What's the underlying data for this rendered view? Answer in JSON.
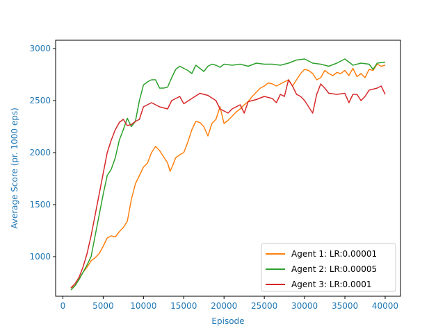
{
  "colors": {
    "axis_label": "#1f77b4",
    "tick_label": "#1f77b4",
    "frame": "#000000",
    "background": "#ffffff"
  },
  "chart_data": {
    "type": "line",
    "title": "",
    "xlabel": "Episode",
    "ylabel": "Average Score (pr. 1000 eps)",
    "xlim": [
      -900,
      41900
    ],
    "ylim": [
      620,
      3080
    ],
    "xticks": [
      0,
      5000,
      10000,
      15000,
      20000,
      25000,
      30000,
      35000,
      40000
    ],
    "xtick_labels": [
      "0",
      "5000",
      "10000",
      "15000",
      "20000",
      "25000",
      "30000",
      "35000",
      "40000"
    ],
    "yticks": [
      1000,
      1500,
      2000,
      2500,
      3000
    ],
    "ytick_labels": [
      "1000",
      "1500",
      "2000",
      "2500",
      "3000"
    ],
    "grid": false,
    "legend_position": "lower-right",
    "series": [
      {
        "name": "Agent 1: LR:0.00001",
        "color": "#ff7f0e",
        "x": [
          1000,
          1500,
          2000,
          2500,
          3000,
          3500,
          4000,
          4500,
          5000,
          5500,
          6000,
          6500,
          7000,
          7500,
          8000,
          8500,
          9000,
          9500,
          10000,
          10500,
          11000,
          11500,
          12000,
          12500,
          13000,
          13300,
          13600,
          14000,
          14500,
          15000,
          15500,
          16000,
          16500,
          17000,
          17500,
          18000,
          18500,
          19000,
          19500,
          20000,
          20500,
          21000,
          21500,
          22000,
          22500,
          23000,
          23500,
          24000,
          24500,
          25000,
          25500,
          26000,
          26500,
          27000,
          27500,
          28000,
          28500,
          29000,
          29500,
          30000,
          30500,
          31000,
          31500,
          32000,
          32500,
          33000,
          33500,
          34000,
          34500,
          35000,
          35500,
          36000,
          36500,
          37000,
          37500,
          38000,
          38500,
          39000,
          39500,
          40000
        ],
        "values": [
          700,
          720,
          780,
          850,
          900,
          960,
          990,
          1030,
          1100,
          1180,
          1200,
          1190,
          1240,
          1280,
          1340,
          1550,
          1700,
          1780,
          1860,
          1900,
          2000,
          2060,
          2020,
          1960,
          1900,
          1820,
          1870,
          1950,
          1980,
          2000,
          2100,
          2220,
          2300,
          2290,
          2250,
          2160,
          2280,
          2320,
          2440,
          2280,
          2310,
          2350,
          2390,
          2420,
          2460,
          2490,
          2540,
          2580,
          2620,
          2640,
          2670,
          2660,
          2640,
          2660,
          2680,
          2700,
          2640,
          2700,
          2760,
          2800,
          2790,
          2760,
          2700,
          2720,
          2790,
          2760,
          2740,
          2770,
          2760,
          2790,
          2740,
          2810,
          2730,
          2760,
          2720,
          2800,
          2790,
          2850,
          2830,
          2840
        ]
      },
      {
        "name": "Agent 2: LR:0.00005",
        "color": "#2ca02c",
        "x": [
          1000,
          1500,
          2000,
          2500,
          3000,
          3500,
          4000,
          4500,
          5000,
          5500,
          6000,
          6500,
          7000,
          7500,
          8000,
          8500,
          9000,
          9500,
          10000,
          10500,
          11000,
          11500,
          12000,
          12500,
          13000,
          13500,
          14000,
          14500,
          15000,
          15500,
          16000,
          16500,
          17000,
          17500,
          18000,
          18500,
          19000,
          19500,
          20000,
          21000,
          22000,
          23000,
          24000,
          25000,
          26000,
          27000,
          28000,
          29000,
          30000,
          31000,
          32000,
          33000,
          34000,
          35000,
          35500,
          36000,
          37000,
          38000,
          38500,
          39000,
          40000
        ],
        "values": [
          680,
          720,
          780,
          850,
          920,
          1000,
          1200,
          1400,
          1600,
          1780,
          1840,
          1950,
          2120,
          2220,
          2330,
          2250,
          2300,
          2500,
          2650,
          2680,
          2700,
          2700,
          2620,
          2620,
          2630,
          2720,
          2800,
          2830,
          2810,
          2790,
          2760,
          2840,
          2810,
          2780,
          2830,
          2850,
          2840,
          2820,
          2850,
          2840,
          2850,
          2830,
          2860,
          2850,
          2850,
          2840,
          2860,
          2890,
          2900,
          2860,
          2850,
          2830,
          2860,
          2900,
          2870,
          2840,
          2860,
          2850,
          2800,
          2860,
          2870
        ]
      },
      {
        "name": "Agent 3: LR:0.0001",
        "color": "#d62728",
        "x": [
          1000,
          1500,
          2000,
          2500,
          3000,
          3500,
          4000,
          4500,
          5000,
          5500,
          6000,
          6500,
          7000,
          7500,
          8000,
          8500,
          9000,
          9500,
          10000,
          10500,
          11000,
          12000,
          13000,
          13500,
          14000,
          14500,
          15000,
          16000,
          17000,
          18000,
          19000,
          19500,
          20000,
          20500,
          21000,
          22000,
          22500,
          23000,
          23500,
          24000,
          25000,
          26000,
          26500,
          27000,
          27500,
          28000,
          28500,
          29000,
          29500,
          30000,
          30500,
          31000,
          31500,
          32000,
          32500,
          33000,
          34000,
          35000,
          35500,
          36000,
          36500,
          37000,
          37500,
          38000,
          39000,
          39500,
          40000
        ],
        "values": [
          700,
          740,
          800,
          900,
          1030,
          1200,
          1400,
          1600,
          1800,
          2000,
          2120,
          2220,
          2290,
          2320,
          2260,
          2270,
          2300,
          2320,
          2440,
          2460,
          2480,
          2440,
          2420,
          2500,
          2520,
          2540,
          2470,
          2520,
          2570,
          2550,
          2500,
          2420,
          2400,
          2380,
          2420,
          2460,
          2380,
          2490,
          2500,
          2510,
          2540,
          2520,
          2480,
          2560,
          2540,
          2700,
          2640,
          2560,
          2540,
          2500,
          2440,
          2380,
          2560,
          2660,
          2620,
          2570,
          2560,
          2570,
          2480,
          2560,
          2560,
          2500,
          2540,
          2600,
          2620,
          2640,
          2560
        ]
      }
    ]
  }
}
